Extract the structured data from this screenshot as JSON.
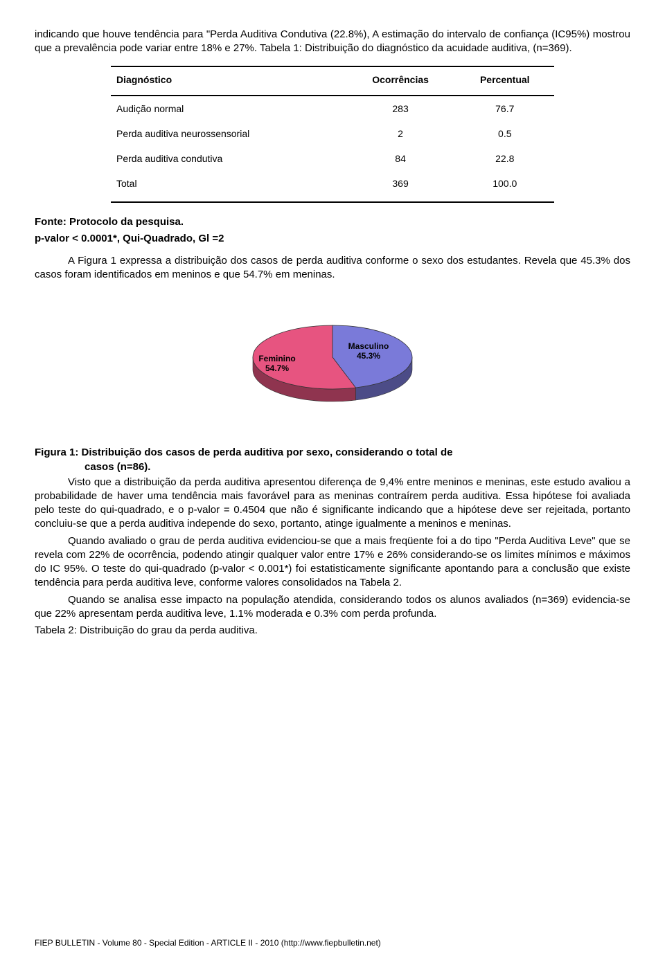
{
  "intro": {
    "p1": "indicando que houve tendência para \"Perda Auditiva Condutiva (22.8%), A estimação do intervalo de confiança (IC95%) mostrou que a prevalência pode variar entre 18% e 27%. Tabela 1: Distribuição do diagnóstico da acuidade auditiva, (n=369)."
  },
  "table1": {
    "columns": [
      "Diagnóstico",
      "Ocorrências",
      "Percentual"
    ],
    "rows": [
      [
        "Audição normal",
        "283",
        "76.7"
      ],
      [
        "Perda auditiva neurossensorial",
        "2",
        "0.5"
      ],
      [
        "Perda auditiva condutiva",
        "84",
        "22.8"
      ],
      [
        "Total",
        "369",
        "100.0"
      ]
    ]
  },
  "source": {
    "line1": "Fonte: Protocolo da pesquisa.",
    "line2": "p-valor < 0.0001*, Qui-Quadrado, Gl =2"
  },
  "mid": {
    "p1": "A Figura 1 expressa a distribuição dos casos de perda auditiva conforme o sexo dos estudantes. Revela que 45.3% dos casos foram identificados em meninos e que 54.7% em meninas."
  },
  "pie": {
    "type": "pie",
    "slices": [
      {
        "label": "Feminino",
        "value_label": "54.7%",
        "value": 54.7,
        "color": "#e75480",
        "text_color": "#000000"
      },
      {
        "label": "Masculino",
        "value_label": "45.3%",
        "value": 45.3,
        "color": "#7a7ad9",
        "text_color": "#000000"
      }
    ],
    "label_fontsize": 12,
    "label_fontweight": "bold",
    "background_color": "#ffffff",
    "tilt_ratio": 0.4,
    "depth": 18,
    "border_color": "#333333"
  },
  "fig1": {
    "caption_l1": "Figura 1: Distribuição dos casos de perda auditiva por sexo, considerando o total de",
    "caption_l2": "casos (n=86)."
  },
  "body": {
    "p1": "Visto que a distribuição da perda auditiva apresentou diferença de 9,4% entre meninos e meninas, este estudo avaliou a probabilidade de haver uma tendência mais favorável para as meninas contraírem perda auditiva. Essa hipótese foi avaliada pelo teste do qui-quadrado, e o p-valor = 0.4504 que não é significante indicando que a hipótese deve ser rejeitada, portanto concluiu-se que a perda auditiva independe do sexo, portanto, atinge igualmente a meninos e meninas.",
    "p2": "Quando avaliado o grau de perda auditiva evidenciou-se que a mais freqüente foi a do tipo \"Perda Auditiva Leve\" que se revela com 22% de ocorrência, podendo atingir qualquer valor entre 17% e 26% considerando-se os limites mínimos e máximos do IC 95%. O teste do qui-quadrado (p-valor < 0.001*) foi estatisticamente significante apontando para a conclusão que existe tendência para perda auditiva leve, conforme valores consolidados na Tabela 2.",
    "p3": "Quando se analisa esse impacto na população atendida, considerando todos os alunos avaliados  (n=369) evidencia-se que 22% apresentam perda auditiva leve, 1.1% moderada e 0.3% com perda profunda.",
    "p4": "Tabela 2: Distribuição do grau da perda auditiva."
  },
  "footer": {
    "text": "FIEP BULLETIN - Volume 80 - Special Edition - ARTICLE II - 2010  (http://www.fiepbulletin.net)"
  }
}
